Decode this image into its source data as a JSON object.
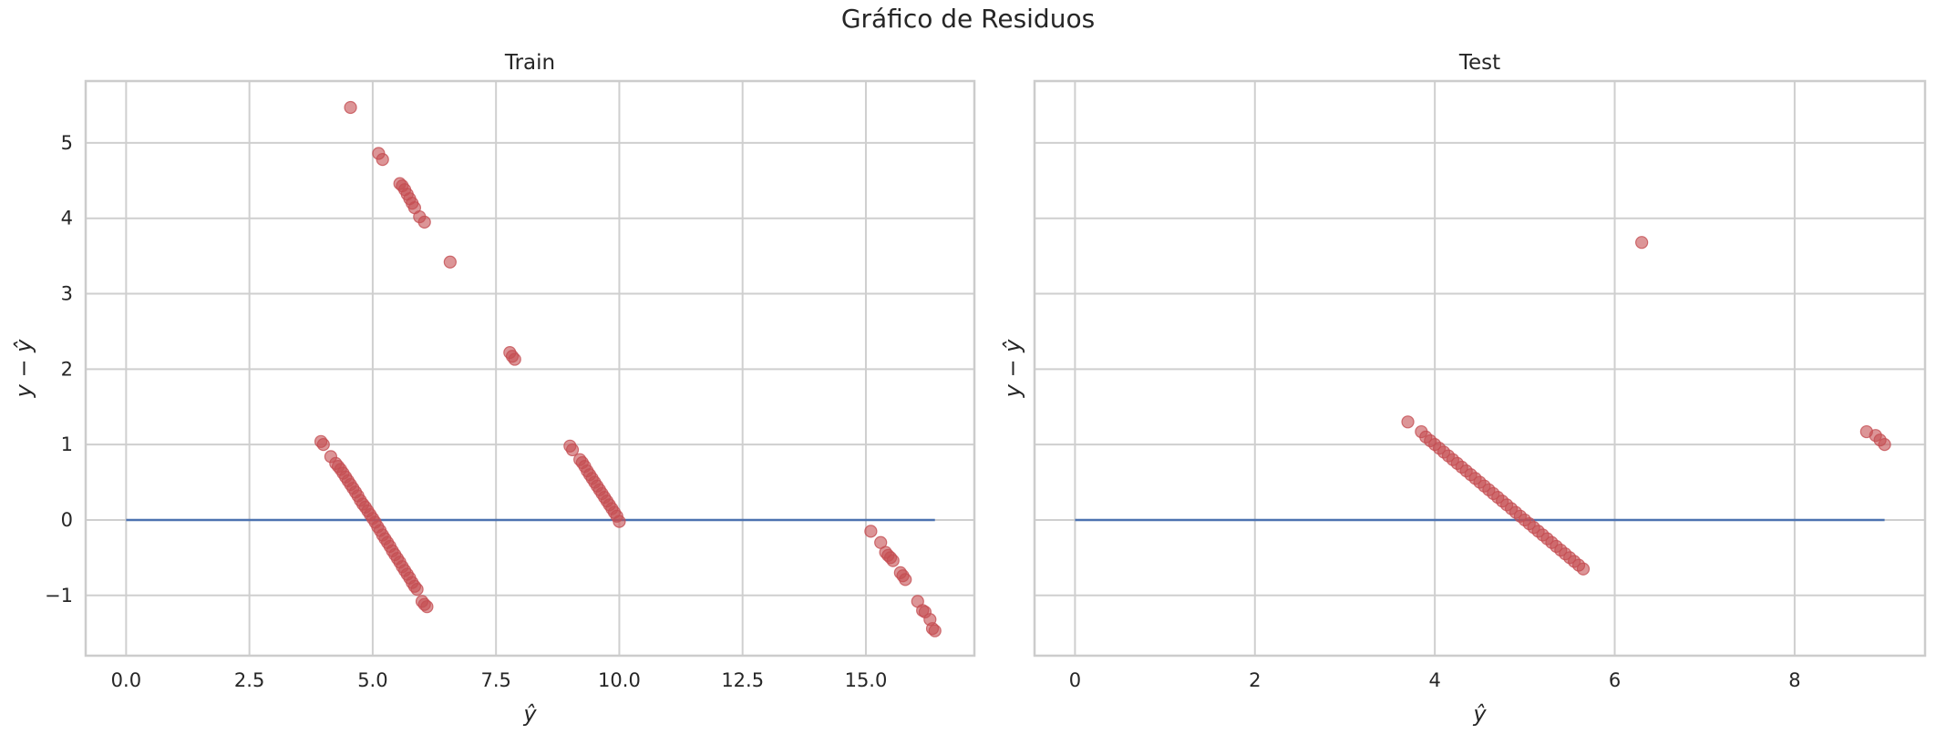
{
  "figure": {
    "title": "Gráfico de Residuos"
  },
  "colors": {
    "points": "#c44e52",
    "zero_line": "#4c72b0"
  },
  "chart_data": [
    {
      "type": "scatter",
      "title": "Train",
      "xlabel": "ŷ",
      "ylabel": "y − ŷ",
      "xlim": [
        -0.82,
        17.2
      ],
      "ylim": [
        -1.8,
        5.82
      ],
      "xticks": [
        0.0,
        2.5,
        5.0,
        7.5,
        10.0,
        12.5,
        15.0
      ],
      "xtick_labels": [
        "0.0",
        "2.5",
        "5.0",
        "7.5",
        "10.0",
        "12.5",
        "15.0"
      ],
      "yticks": [
        -1,
        0,
        1,
        2,
        3,
        4,
        5
      ],
      "ytick_labels": [
        "−1",
        "0",
        "1",
        "2",
        "3",
        "4",
        "5"
      ],
      "grid": true,
      "hline": {
        "y": 0,
        "x_from": 0.0,
        "x_to": 16.4
      },
      "points": [
        [
          4.55,
          5.47
        ],
        [
          5.12,
          4.86
        ],
        [
          5.2,
          4.78
        ],
        [
          5.55,
          4.46
        ],
        [
          5.6,
          4.43
        ],
        [
          5.65,
          4.38
        ],
        [
          5.7,
          4.32
        ],
        [
          5.75,
          4.26
        ],
        [
          5.8,
          4.2
        ],
        [
          5.85,
          4.14
        ],
        [
          5.95,
          4.02
        ],
        [
          6.05,
          3.95
        ],
        [
          6.57,
          3.42
        ],
        [
          7.78,
          2.22
        ],
        [
          7.83,
          2.17
        ],
        [
          7.88,
          2.13
        ],
        [
          3.95,
          1.04
        ],
        [
          4.0,
          1.0
        ],
        [
          4.15,
          0.84
        ],
        [
          4.25,
          0.75
        ],
        [
          4.3,
          0.71
        ],
        [
          4.35,
          0.67
        ],
        [
          4.4,
          0.62
        ],
        [
          4.45,
          0.57
        ],
        [
          4.5,
          0.52
        ],
        [
          4.55,
          0.47
        ],
        [
          4.6,
          0.42
        ],
        [
          4.65,
          0.37
        ],
        [
          4.7,
          0.32
        ],
        [
          4.75,
          0.26
        ],
        [
          4.8,
          0.21
        ],
        [
          4.85,
          0.17
        ],
        [
          4.9,
          0.12
        ],
        [
          4.95,
          0.07
        ],
        [
          5.0,
          0.02
        ],
        [
          5.05,
          -0.03
        ],
        [
          5.1,
          -0.09
        ],
        [
          5.15,
          -0.14
        ],
        [
          5.2,
          -0.2
        ],
        [
          5.25,
          -0.25
        ],
        [
          5.3,
          -0.3
        ],
        [
          5.35,
          -0.35
        ],
        [
          5.4,
          -0.41
        ],
        [
          5.45,
          -0.46
        ],
        [
          5.5,
          -0.51
        ],
        [
          5.55,
          -0.56
        ],
        [
          5.6,
          -0.62
        ],
        [
          5.65,
          -0.67
        ],
        [
          5.7,
          -0.72
        ],
        [
          5.75,
          -0.77
        ],
        [
          5.8,
          -0.83
        ],
        [
          5.85,
          -0.88
        ],
        [
          5.9,
          -0.92
        ],
        [
          6.0,
          -1.08
        ],
        [
          6.05,
          -1.12
        ],
        [
          6.1,
          -1.15
        ],
        [
          9.0,
          0.98
        ],
        [
          9.05,
          0.93
        ],
        [
          9.2,
          0.8
        ],
        [
          9.25,
          0.76
        ],
        [
          9.3,
          0.71
        ],
        [
          9.35,
          0.65
        ],
        [
          9.4,
          0.6
        ],
        [
          9.45,
          0.55
        ],
        [
          9.5,
          0.5
        ],
        [
          9.55,
          0.45
        ],
        [
          9.6,
          0.4
        ],
        [
          9.65,
          0.35
        ],
        [
          9.7,
          0.3
        ],
        [
          9.75,
          0.25
        ],
        [
          9.8,
          0.2
        ],
        [
          9.85,
          0.15
        ],
        [
          9.9,
          0.1
        ],
        [
          9.95,
          0.05
        ],
        [
          10.0,
          -0.02
        ],
        [
          15.1,
          -0.15
        ],
        [
          15.3,
          -0.3
        ],
        [
          15.4,
          -0.43
        ],
        [
          15.45,
          -0.47
        ],
        [
          15.5,
          -0.5
        ],
        [
          15.55,
          -0.54
        ],
        [
          15.7,
          -0.7
        ],
        [
          15.75,
          -0.74
        ],
        [
          15.8,
          -0.79
        ],
        [
          16.05,
          -1.08
        ],
        [
          16.15,
          -1.2
        ],
        [
          16.2,
          -1.22
        ],
        [
          16.3,
          -1.32
        ],
        [
          16.35,
          -1.44
        ],
        [
          16.4,
          -1.47
        ]
      ]
    },
    {
      "type": "scatter",
      "title": "Test",
      "xlabel": "ŷ",
      "ylabel": "y − ŷ",
      "xlim": [
        -0.45,
        9.45
      ],
      "ylim": [
        -1.8,
        5.82
      ],
      "xticks": [
        0,
        2,
        4,
        6,
        8
      ],
      "xtick_labels": [
        "0",
        "2",
        "4",
        "6",
        "8"
      ],
      "yticks": [
        -1,
        0,
        1,
        2,
        3,
        4,
        5
      ],
      "ytick_labels": [
        "",
        "",
        "",
        "",
        "",
        "",
        ""
      ],
      "grid": true,
      "hline": {
        "y": 0,
        "x_from": 0.0,
        "x_to": 9.0
      },
      "points": [
        [
          3.7,
          1.3
        ],
        [
          3.85,
          1.17
        ],
        [
          3.9,
          1.1
        ],
        [
          3.95,
          1.05
        ],
        [
          4.0,
          1.0
        ],
        [
          4.05,
          0.95
        ],
        [
          4.1,
          0.9
        ],
        [
          4.15,
          0.85
        ],
        [
          4.2,
          0.8
        ],
        [
          4.25,
          0.75
        ],
        [
          4.3,
          0.7
        ],
        [
          4.35,
          0.65
        ],
        [
          4.4,
          0.6
        ],
        [
          4.45,
          0.55
        ],
        [
          4.5,
          0.5
        ],
        [
          4.55,
          0.45
        ],
        [
          4.6,
          0.4
        ],
        [
          4.65,
          0.35
        ],
        [
          4.7,
          0.3
        ],
        [
          4.75,
          0.25
        ],
        [
          4.8,
          0.2
        ],
        [
          4.85,
          0.15
        ],
        [
          4.9,
          0.1
        ],
        [
          4.95,
          0.05
        ],
        [
          5.0,
          0.0
        ],
        [
          5.05,
          -0.05
        ],
        [
          5.1,
          -0.1
        ],
        [
          5.15,
          -0.15
        ],
        [
          5.2,
          -0.2
        ],
        [
          5.25,
          -0.25
        ],
        [
          5.3,
          -0.3
        ],
        [
          5.35,
          -0.35
        ],
        [
          5.4,
          -0.4
        ],
        [
          5.45,
          -0.45
        ],
        [
          5.5,
          -0.5
        ],
        [
          5.55,
          -0.55
        ],
        [
          5.6,
          -0.6
        ],
        [
          5.65,
          -0.65
        ],
        [
          6.3,
          3.68
        ],
        [
          8.8,
          1.17
        ],
        [
          8.9,
          1.12
        ],
        [
          8.95,
          1.06
        ],
        [
          9.0,
          1.0
        ]
      ]
    }
  ]
}
